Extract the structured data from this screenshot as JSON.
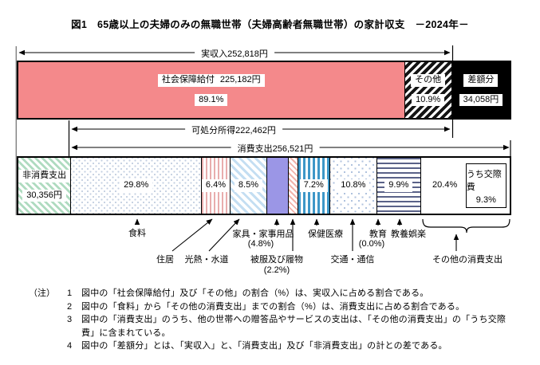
{
  "title": "図1　65歳以上の夫婦のみの無職世帯（夫婦高齢者無職世帯）の家計収支　－2024年－",
  "chart_data": {
    "type": "bar",
    "variant": "stacked-horizontal-band",
    "unit": "円",
    "income": {
      "label": "実収入",
      "value_text": "252,818円",
      "value": 252818,
      "segments": [
        {
          "id": "social-security",
          "name": "社会保障給付",
          "value_text": "225,182円",
          "value": 225182,
          "percent_text": "89.1%",
          "percent": 89.1,
          "pattern": "solid-pink",
          "color": "#F4898B"
        },
        {
          "id": "other-income",
          "name": "その他",
          "percent_text": "10.9%",
          "percent": 10.9,
          "pattern": "diagonal-hatch-black"
        },
        {
          "id": "deficit",
          "name": "差額分",
          "value_text": "34,058円",
          "value": 34058,
          "pattern": "solid-black",
          "color": "#000000"
        }
      ]
    },
    "disposable": {
      "label": "可処分所得",
      "value_text": "222,462円",
      "value": 222462
    },
    "consumption": {
      "label": "消費支出",
      "value_text": "256,521円",
      "value": 256521
    },
    "non_consumption": {
      "label": "非消費支出",
      "value_text": "30,356円",
      "value": 30356,
      "pattern": "diagonal-green"
    },
    "categories": [
      {
        "name": "食料",
        "percent": 29.8,
        "percent_text": "29.8%",
        "pattern": "dots-blue"
      },
      {
        "name": "住居",
        "percent": 6.4,
        "percent_text": "6.4%",
        "pattern": "vstripe-pink"
      },
      {
        "name": "光熱・水道",
        "percent": 8.5,
        "percent_text": "8.5%",
        "pattern": "diag-blue"
      },
      {
        "name": "家具・家事用品",
        "percent": 4.8,
        "percent_text": "(4.8%)",
        "pattern": "solid-purple",
        "color": "#9B96E6"
      },
      {
        "name": "被服及び履物",
        "percent": 2.2,
        "percent_text": "(2.2%)",
        "pattern": "diag-pink"
      },
      {
        "name": "保健医療",
        "percent": 7.2,
        "percent_text": "7.2%",
        "pattern": "vstripe-blue"
      },
      {
        "name": "交通・通信",
        "percent": 10.8,
        "percent_text": "10.8%",
        "pattern": "diamond-blue"
      },
      {
        "name": "教育",
        "percent": 0.0,
        "percent_text": "(0.0%)",
        "pattern": "none"
      },
      {
        "name": "教養娯楽",
        "percent": 9.9,
        "percent_text": "9.9%",
        "pattern": "hstripe-navy"
      },
      {
        "name": "その他の消費支出",
        "percent": 20.4,
        "percent_text": "20.4%",
        "pattern": "plain-white"
      }
    ],
    "kosaihi": {
      "label": "うち交際費",
      "percent_text": "9.3%",
      "percent": 9.3
    }
  },
  "notes": {
    "heading": "（注）",
    "items": [
      {
        "num": "1",
        "text": "図中の「社会保障給付」及び「その他」の割合（%）は、実収入に占める割合である。"
      },
      {
        "num": "2",
        "text": "図中の「食料」から「その他の消費支出」までの割合（%）は、消費支出に占める割合である。"
      },
      {
        "num": "3",
        "text": "図中の「消費支出」のうち、他の世帯への贈答品やサービスの支出は、「その他の消費支出」の「うち交際費」に含まれている。"
      },
      {
        "num": "4",
        "text": "図中の「差額分」とは、「実収入」と、「消費支出」及び「非消費支出」の計との差である。"
      }
    ]
  }
}
